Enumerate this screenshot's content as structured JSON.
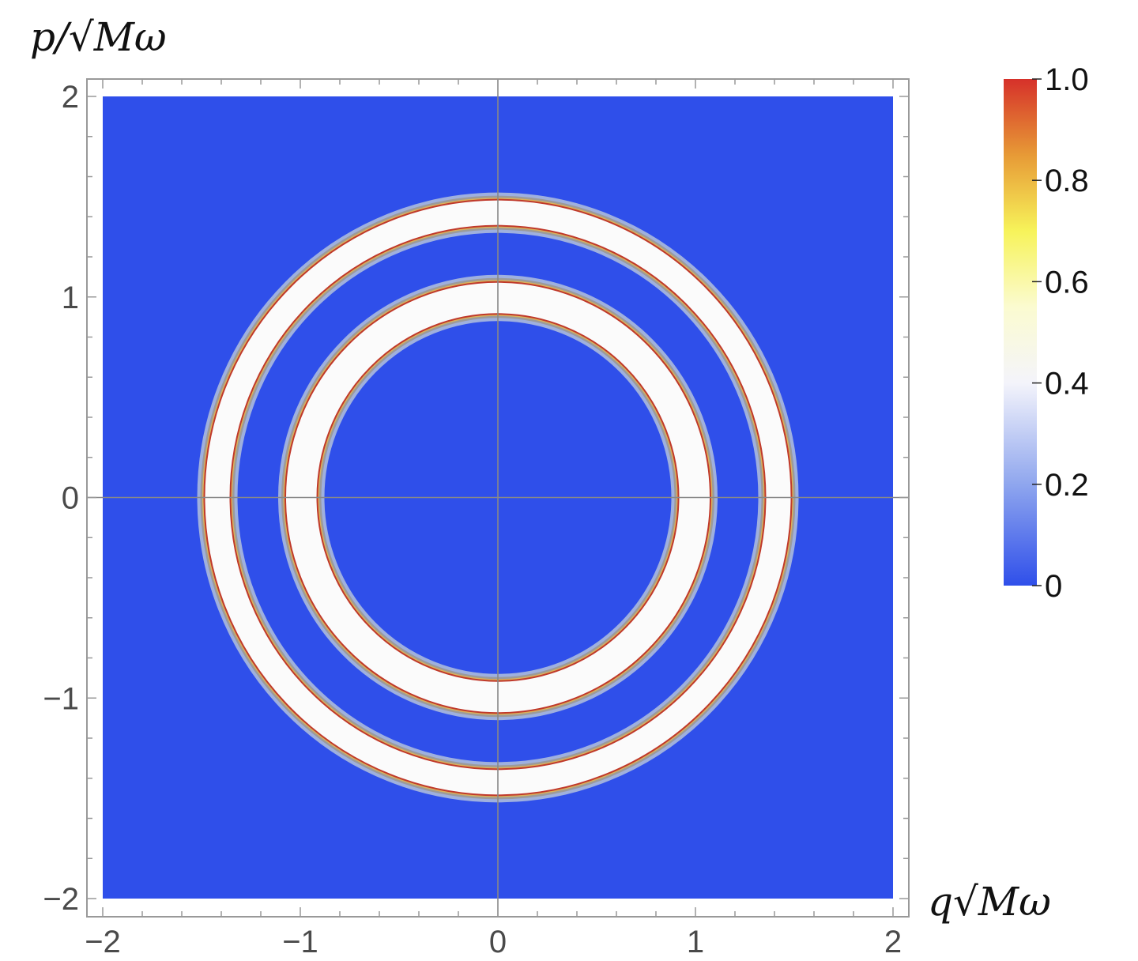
{
  "chart_data": {
    "type": "heatmap",
    "title": "",
    "xlabel": "q√Mω",
    "ylabel": "p/√Mω",
    "xlim": [
      -2,
      2
    ],
    "ylim": [
      -2,
      2
    ],
    "x_ticks": [
      "−2",
      "−1",
      "0",
      "1",
      "2"
    ],
    "y_ticks": [
      "−2",
      "−1",
      "0",
      "1",
      "2"
    ],
    "grid": false,
    "center_lines": true,
    "background_value": 0,
    "rings": [
      {
        "inner_radius": 1.35,
        "outer_radius": 1.49,
        "value": 0.45
      },
      {
        "inner_radius": 0.91,
        "outer_radius": 1.08,
        "value": 0.45
      }
    ],
    "colorbar": {
      "range": [
        0,
        1
      ],
      "tick_labels": [
        "0",
        "0.2",
        "0.4",
        "0.6",
        "0.8",
        "1.0"
      ],
      "placement": "right",
      "colors": [
        "#2f4fea",
        "#8fa6ee",
        "#f4f4fb",
        "#fbfbd0",
        "#f7f35a",
        "#e79a36",
        "#d6312a"
      ]
    }
  }
}
